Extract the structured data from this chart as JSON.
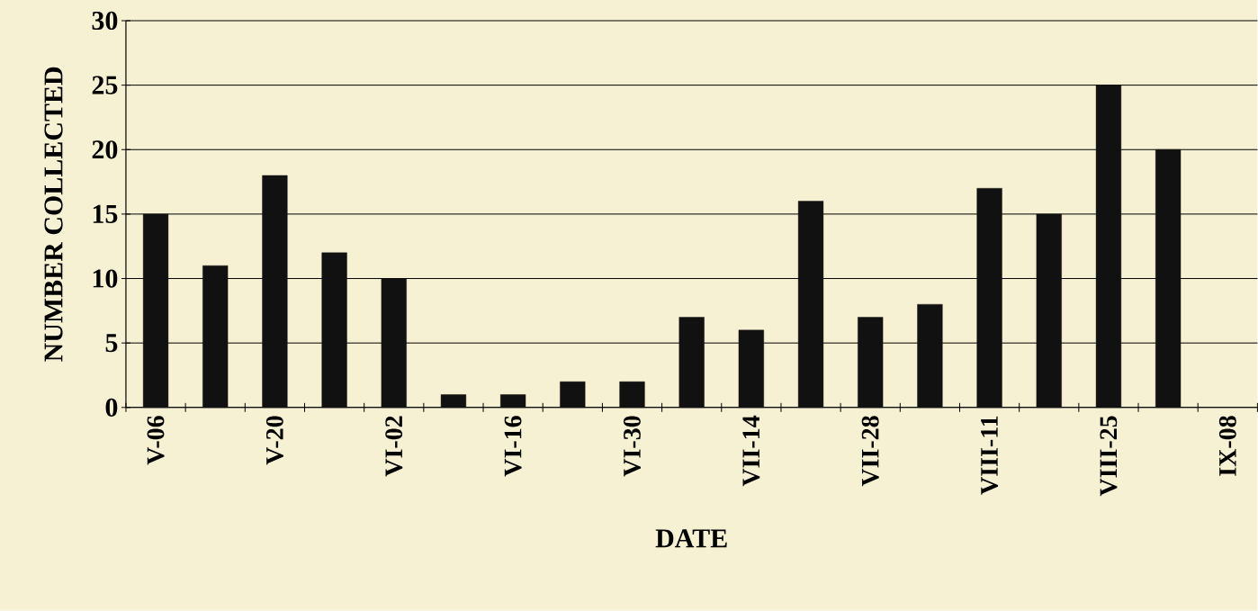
{
  "chart_data": {
    "type": "bar",
    "xlabel": "DATE",
    "ylabel": "NUMBER COLLECTED",
    "categories": [
      "V-06",
      null,
      "V-20",
      null,
      "VI-02",
      null,
      "VI-16",
      null,
      "VI-30",
      null,
      "VII-14",
      null,
      "VII-28",
      null,
      "VIII-11",
      null,
      "VIII-25",
      null,
      "IX-08"
    ],
    "values": [
      15,
      11,
      18,
      12,
      10,
      1,
      1,
      2,
      2,
      7,
      6,
      16,
      7,
      8,
      17,
      15,
      25,
      20,
      null
    ],
    "color": "#111111",
    "ylim": [
      0,
      30
    ],
    "yticks": [
      0,
      5,
      10,
      15,
      20,
      25,
      30
    ],
    "grid": "y"
  }
}
